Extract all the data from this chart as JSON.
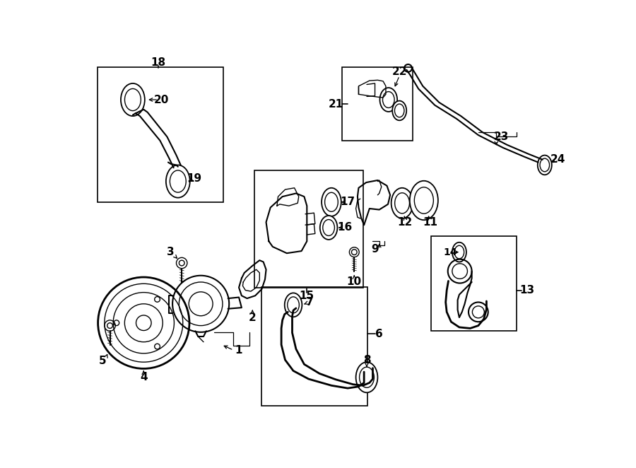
{
  "bg_color": "#ffffff",
  "line_color": "#000000",
  "fig_width": 9.0,
  "fig_height": 6.62,
  "dpi": 100,
  "boxes": {
    "b18": [
      0.033,
      0.555,
      0.258,
      0.375
    ],
    "b15": [
      0.355,
      0.535,
      0.225,
      0.32
    ],
    "b6": [
      0.37,
      0.29,
      0.215,
      0.235
    ],
    "b14": [
      0.715,
      0.525,
      0.175,
      0.265
    ],
    "b21": [
      0.535,
      0.715,
      0.145,
      0.205
    ]
  }
}
